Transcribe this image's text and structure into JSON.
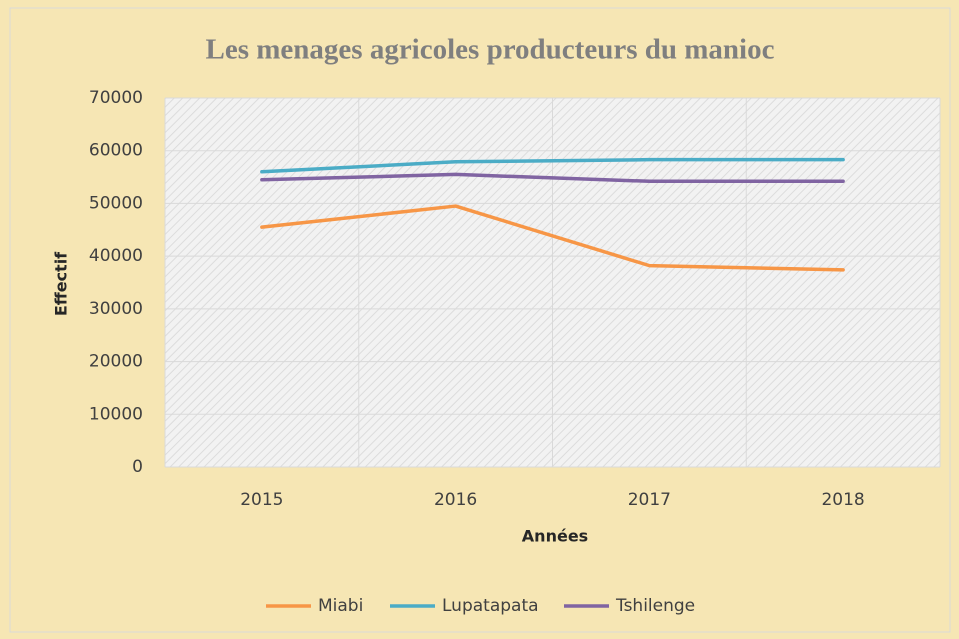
{
  "chart_data": {
    "type": "line",
    "title": "Les menages agricoles producteurs du manioc",
    "x_label": "Années",
    "y_label": "Effectif",
    "categories": [
      "2015",
      "2016",
      "2017",
      "2018"
    ],
    "series": [
      {
        "name": "Miabi",
        "color": "#f79646",
        "values": [
          45500,
          49500,
          38200,
          37400
        ]
      },
      {
        "name": "Lupatapata",
        "color": "#4bacc6",
        "values": [
          56000,
          57900,
          58300,
          58300
        ]
      },
      {
        "name": "Tshilenge",
        "color": "#8064a2",
        "values": [
          54500,
          55500,
          54200,
          54200
        ]
      }
    ],
    "ylim": [
      0,
      70000
    ],
    "yticks": [
      0,
      10000,
      20000,
      30000,
      40000,
      50000,
      60000,
      70000
    ],
    "grid": true,
    "legend": "bottom"
  }
}
